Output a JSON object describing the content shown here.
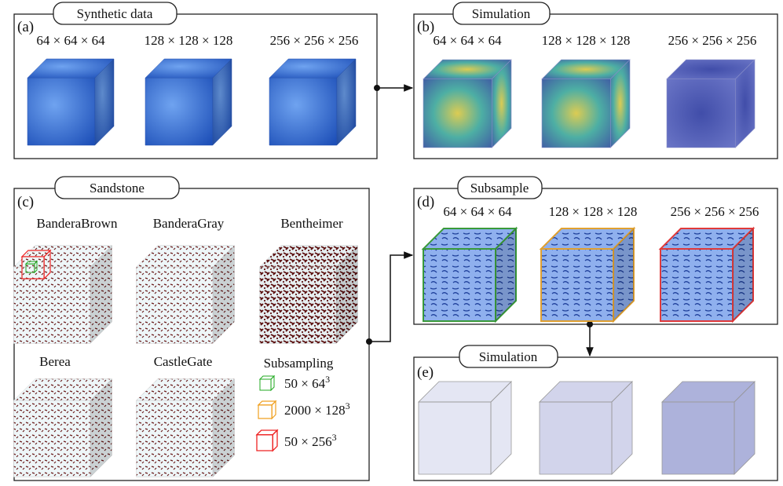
{
  "panels": {
    "a": {
      "tag": "(a)",
      "title": "Synthetic data",
      "items": [
        "64 × 64 × 64",
        "128 × 128 × 128",
        "256 × 256 × 256"
      ]
    },
    "b": {
      "tag": "(b)",
      "title": "Simulation",
      "items": [
        "64 × 64 × 64",
        "128 × 128 × 128",
        "256 × 256 × 256"
      ]
    },
    "c": {
      "tag": "(c)",
      "title": "Sandstone",
      "samples": [
        "BanderaBrown",
        "BanderaGray",
        "Bentheimer",
        "Berea",
        "CastleGate"
      ],
      "legend": {
        "title": "Subsampling",
        "entries": [
          {
            "label": "50 × 64",
            "exponent": "3"
          },
          {
            "label": "2000 × 128",
            "exponent": "3"
          },
          {
            "label": "50 × 256",
            "exponent": "3"
          }
        ]
      }
    },
    "d": {
      "tag": "(d)",
      "title": "Subsample",
      "items": [
        "64 × 64 × 64",
        "128 × 128 × 128",
        "256 × 256 × 256"
      ]
    },
    "e": {
      "tag": "(e)",
      "title": "Simulation"
    }
  }
}
